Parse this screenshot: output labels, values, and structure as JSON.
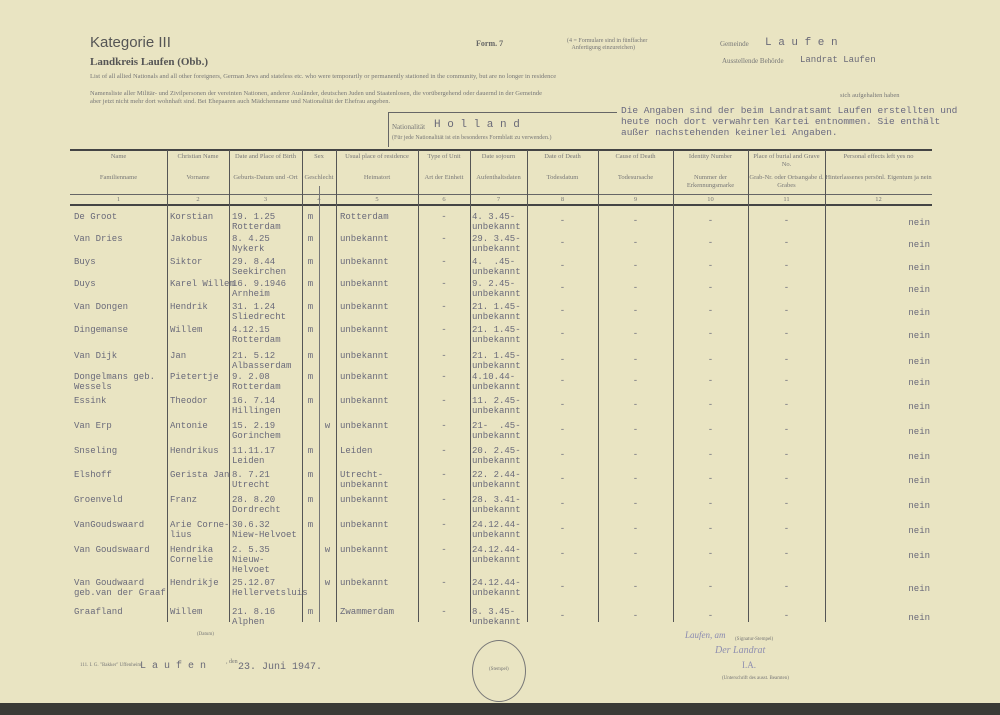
{
  "header": {
    "category": "Kategorie III",
    "district": "Landkreis Laufen (Obb.)",
    "form": "Form. 7",
    "copies_note_1": "(4 = Formulare sind in fünffacher",
    "copies_note_2": "Anfertigung einzureichen)",
    "municipality_label": "Gemeinde",
    "municipality_value": "L a u f e n",
    "authority_label": "Ausstellende Behörde",
    "authority_value": "Landrat Laufen",
    "line_en": "List of all allied Nationals and all other foreigners, German Jews and stateless etc. who were temporarily or permanently stationed in the community, but are no longer in residence",
    "line_de_1": "Namensliste aller Militär- und Zivilpersonen der vereinten Nationen, anderer Ausländer, deutschen Juden und Staatenlosen, die vorübergehend oder dauernd in der Gemeinde",
    "line_de_1_end": "sich aufgehalten haben",
    "line_de_2": "aber jetzt nicht mehr dort wohnhaft sind. Bei Ehepaaren auch Mädchenname und Nationalität der Ehefrau angeben.",
    "nationality_label": "Nationalität",
    "nationality_value": "H o l l a n d",
    "nationality_note": "(Für jede Nationalität ist ein besonderes Formblatt zu verwenden.)",
    "typed_note": [
      "Die Angaben sind der beim Landratsamt Laufen erstellten und",
      "heute noch dort verwahrten Kartei entnommen. Sie enthält",
      "außer nachstehenden keinerlei Angaben."
    ]
  },
  "columns": [
    {
      "en": "Name",
      "de": "Familienname",
      "no": "1"
    },
    {
      "en": "Christian Name",
      "de": "Vorname",
      "no": "2"
    },
    {
      "en": "Date and Place of Birth",
      "de": "Geburts-Datum und -Ort",
      "no": "3"
    },
    {
      "en": "Sex",
      "de": "Geschlecht",
      "no": "4"
    },
    {
      "en": "Usual place of residence",
      "de": "Heimatort",
      "no": "5"
    },
    {
      "en": "Type of Unit",
      "de": "Art der Einheit",
      "no": "6"
    },
    {
      "en": "Date sojourn",
      "de": "Aufenthaltsdaten",
      "no": "7"
    },
    {
      "en": "Date of Death",
      "de": "Todesdatum",
      "no": "8"
    },
    {
      "en": "Cause of Death",
      "de": "Todesursache",
      "no": "9"
    },
    {
      "en": "Identity Number",
      "de": "Nummer der Erkennungsmarke",
      "no": "10"
    },
    {
      "en": "Place of burial and Grave No.",
      "de": "Grab-Nr. oder Ortsangabe d. Grabes",
      "no": "11"
    },
    {
      "en": "Personal effects left  yes   no",
      "de": "Hinterlassenes persönl. Eigentum  ja   nein",
      "no": "12"
    }
  ],
  "sex_sub": [
    "m",
    "w"
  ],
  "rows": [
    {
      "name": "De Groot",
      "first": "Korstian",
      "birth": "19. 1.25\nRotterdam",
      "m": "m",
      "w": "",
      "home": "Rotterdam",
      "unit": "-",
      "sojourn": "4. 3.45-\nunbekannt",
      "death": "-",
      "cause": "-",
      "id": "-",
      "grave": "-",
      "effects": "nein"
    },
    {
      "name": "Van Dries",
      "first": "Jakobus",
      "birth": "8. 4.25\nNykerk",
      "m": "m",
      "w": "",
      "home": "unbekannt",
      "unit": "-",
      "sojourn": "29. 3.45-\nunbekannt",
      "death": "-",
      "cause": "-",
      "id": "-",
      "grave": "-",
      "effects": "nein"
    },
    {
      "name": "Buys",
      "first": "Siktor",
      "birth": "29. 8.44\nSeekirchen",
      "m": "m",
      "w": "",
      "home": "unbekannt",
      "unit": "-",
      "sojourn": "4.  .45-\nunbekannt",
      "death": "-",
      "cause": "-",
      "id": "-",
      "grave": "-",
      "effects": "nein"
    },
    {
      "name": "Duys",
      "first": "Karel Willem",
      "birth": "16. 9.1946\nArnheim",
      "m": "m",
      "w": "",
      "home": "unbekannt",
      "unit": "-",
      "sojourn": "9. 2.45-\nunbekannt",
      "death": "-",
      "cause": "-",
      "id": "-",
      "grave": "-",
      "effects": "nein"
    },
    {
      "name": "Van Dongen",
      "first": "Hendrik",
      "birth": "31. 1.24\nSliedrecht",
      "m": "m",
      "w": "",
      "home": "unbekannt",
      "unit": "-",
      "sojourn": "21. 1.45-\nunbekannt",
      "death": "-",
      "cause": "-",
      "id": "-",
      "grave": "-",
      "effects": "nein"
    },
    {
      "name": "Dingemanse",
      "first": "Willem",
      "birth": "4.12.15\nRotterdam",
      "m": "m",
      "w": "",
      "home": "unbekannt",
      "unit": "-",
      "sojourn": "21. 1.45-\nunbekannt",
      "death": "-",
      "cause": "-",
      "id": "-",
      "grave": "-",
      "effects": "nein"
    },
    {
      "name": "Van Dijk",
      "first": "Jan",
      "birth": "21. 5.12\nAlbasserdam",
      "m": "m",
      "w": "",
      "home": "unbekannt",
      "unit": "-",
      "sojourn": "21. 1.45-\nunbekannt",
      "death": "-",
      "cause": "-",
      "id": "-",
      "grave": "-",
      "effects": "nein"
    },
    {
      "name": "Dongelmans geb.\nWessels",
      "first": "Pietertje",
      "birth": "9. 2.08\nRotterdam",
      "m": "m",
      "w": "",
      "home": "unbekannt",
      "unit": "-",
      "sojourn": "4.10.44-\nunbekannt",
      "death": "-",
      "cause": "-",
      "id": "-",
      "grave": "-",
      "effects": "nein"
    },
    {
      "name": "Essink",
      "first": "Theodor",
      "birth": "16. 7.14\nHillingen",
      "m": "m",
      "w": "",
      "home": "unbekannt",
      "unit": "-",
      "sojourn": "11. 2.45-\nunbekannt",
      "death": "-",
      "cause": "-",
      "id": "-",
      "grave": "-",
      "effects": "nein"
    },
    {
      "name": "Van Erp",
      "first": "Antonie",
      "birth": "15. 2.19\nGorinchem",
      "m": "",
      "w": "w",
      "home": "unbekannt",
      "unit": "-",
      "sojourn": "21-  .45-\nunbekannt",
      "death": "-",
      "cause": "-",
      "id": "-",
      "grave": "-",
      "effects": "nein"
    },
    {
      "name": "Snseling",
      "first": "Hendrikus",
      "birth": "11.11.17\nLeiden",
      "m": "m",
      "w": "",
      "home": "Leiden",
      "unit": "-",
      "sojourn": "20. 2.45-\nunbekannt",
      "death": "-",
      "cause": "-",
      "id": "-",
      "grave": "-",
      "effects": "nein"
    },
    {
      "name": "Elshoff",
      "first": "Gerista Jan",
      "birth": "8. 7.21\nUtrecht",
      "m": "m",
      "w": "",
      "home": "Utrecht-\nunbekannt",
      "unit": "-",
      "sojourn": "22. 2.44-\nunbekannt",
      "death": "-",
      "cause": "-",
      "id": "-",
      "grave": "-",
      "effects": "nein"
    },
    {
      "name": "Groenveld",
      "first": "Franz",
      "birth": "28. 8.20\nDordrecht",
      "m": "m",
      "w": "",
      "home": "unbekannt",
      "unit": "-",
      "sojourn": "28. 3.41-\nunbekannt",
      "death": "-",
      "cause": "-",
      "id": "-",
      "grave": "-",
      "effects": "nein"
    },
    {
      "name": "VanGoudswaard",
      "first": "Arie Corne-\nlius",
      "birth": "30.6.32\nNiew-Helvoet",
      "m": "m",
      "w": "",
      "home": "unbekannt",
      "unit": "-",
      "sojourn": "24.12.44-\nunbekannt",
      "death": "-",
      "cause": "-",
      "id": "-",
      "grave": "-",
      "effects": "nein"
    },
    {
      "name": "Van Goudswaard",
      "first": "Hendrika\nCornelie",
      "birth": "2. 5.35\nNieuw-\nHelvoet",
      "m": "",
      "w": "w",
      "home": "unbekannt",
      "unit": "-",
      "sojourn": "24.12.44-\nunbekannt",
      "death": "-",
      "cause": "-",
      "id": "-",
      "grave": "-",
      "effects": "nein"
    },
    {
      "name": "Van Goudwaard\ngeb.van der Graaf",
      "first": "Hendrikje",
      "birth": "25.12.07\nHellervetsluis",
      "m": "",
      "w": "w",
      "home": "unbekannt",
      "unit": "-",
      "sojourn": "24.12.44-\nunbekannt",
      "death": "-",
      "cause": "-",
      "id": "-",
      "grave": "-",
      "effects": "nein"
    },
    {
      "name": "Graafland",
      "first": "Willem",
      "birth": "21. 8.16\nAlphen",
      "m": "m",
      "w": "",
      "home": "Zwammerdam",
      "unit": "-",
      "sojourn": "8. 3.45-\nunbekannt",
      "death": "-",
      "cause": "-",
      "id": "-",
      "grave": "-",
      "effects": "nein"
    }
  ],
  "footer": {
    "place": "L a u f e n",
    "den": ", den",
    "date": "23. Juni 1947.",
    "date_label": "(Datum)",
    "stamp_label": "(Stempel)",
    "signature_place": "Laufen, am",
    "signature_stamp_label": "(Signatur-Stempel)",
    "signed_by": "Der Landrat",
    "signed_ia": "I.A.",
    "signature_label": "(Unterschrift des ausst. Beamten)",
    "printer": "111. I. G. \"Bakker\" Uffenheim"
  }
}
